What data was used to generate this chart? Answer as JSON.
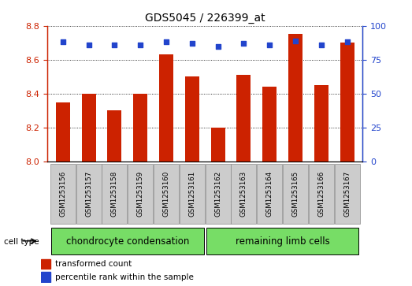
{
  "title": "GDS5045 / 226399_at",
  "samples": [
    "GSM1253156",
    "GSM1253157",
    "GSM1253158",
    "GSM1253159",
    "GSM1253160",
    "GSM1253161",
    "GSM1253162",
    "GSM1253163",
    "GSM1253164",
    "GSM1253165",
    "GSM1253166",
    "GSM1253167"
  ],
  "transformed_count": [
    8.35,
    8.4,
    8.3,
    8.4,
    8.63,
    8.5,
    8.2,
    8.51,
    8.44,
    8.75,
    8.45,
    8.7
  ],
  "percentile_rank": [
    88,
    86,
    86,
    86,
    88,
    87,
    85,
    87,
    86,
    89,
    86,
    88
  ],
  "ylim_left": [
    8.0,
    8.8
  ],
  "ylim_right": [
    0,
    100
  ],
  "yticks_left": [
    8.0,
    8.2,
    8.4,
    8.6,
    8.8
  ],
  "yticks_right": [
    0,
    25,
    50,
    75,
    100
  ],
  "bar_color": "#cc2200",
  "dot_color": "#2244cc",
  "plot_bg": "#ffffff",
  "group1_label": "chondrocyte condensation",
  "group1_color": "#77dd66",
  "group2_label": "remaining limb cells",
  "group2_color": "#77dd66",
  "group1_count": 6,
  "group2_count": 6,
  "cell_type_label": "cell type",
  "legend_bar_label": "transformed count",
  "legend_dot_label": "percentile rank within the sample",
  "bar_width": 0.55,
  "xlabel_bg": "#cccccc",
  "xlabel_edge": "#888888",
  "title_fontsize": 10,
  "tick_fontsize": 8,
  "label_fontsize": 8
}
